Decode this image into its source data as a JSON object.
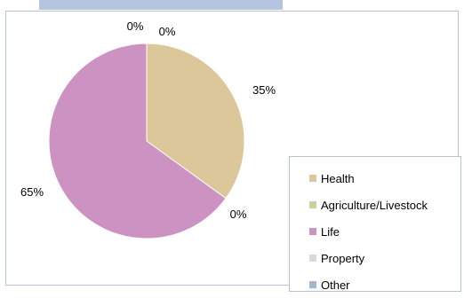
{
  "chart_data": {
    "type": "pie",
    "title": "",
    "categories": [
      "Health",
      "Agriculture/Livestock",
      "Life",
      "Property",
      "Other"
    ],
    "values": [
      35,
      0,
      65,
      0,
      0
    ],
    "data_labels": [
      "35%",
      "0%",
      "65%",
      "0%",
      "0%"
    ],
    "colors": [
      "#dcc79b",
      "#c3d69b",
      "#cc93c2",
      "#d9d9d9",
      "#a5b8d0"
    ],
    "legend_position": "bottom-right",
    "legend": [
      "Health",
      "Agriculture/Livestock",
      "Life",
      "Property",
      "Other"
    ]
  }
}
